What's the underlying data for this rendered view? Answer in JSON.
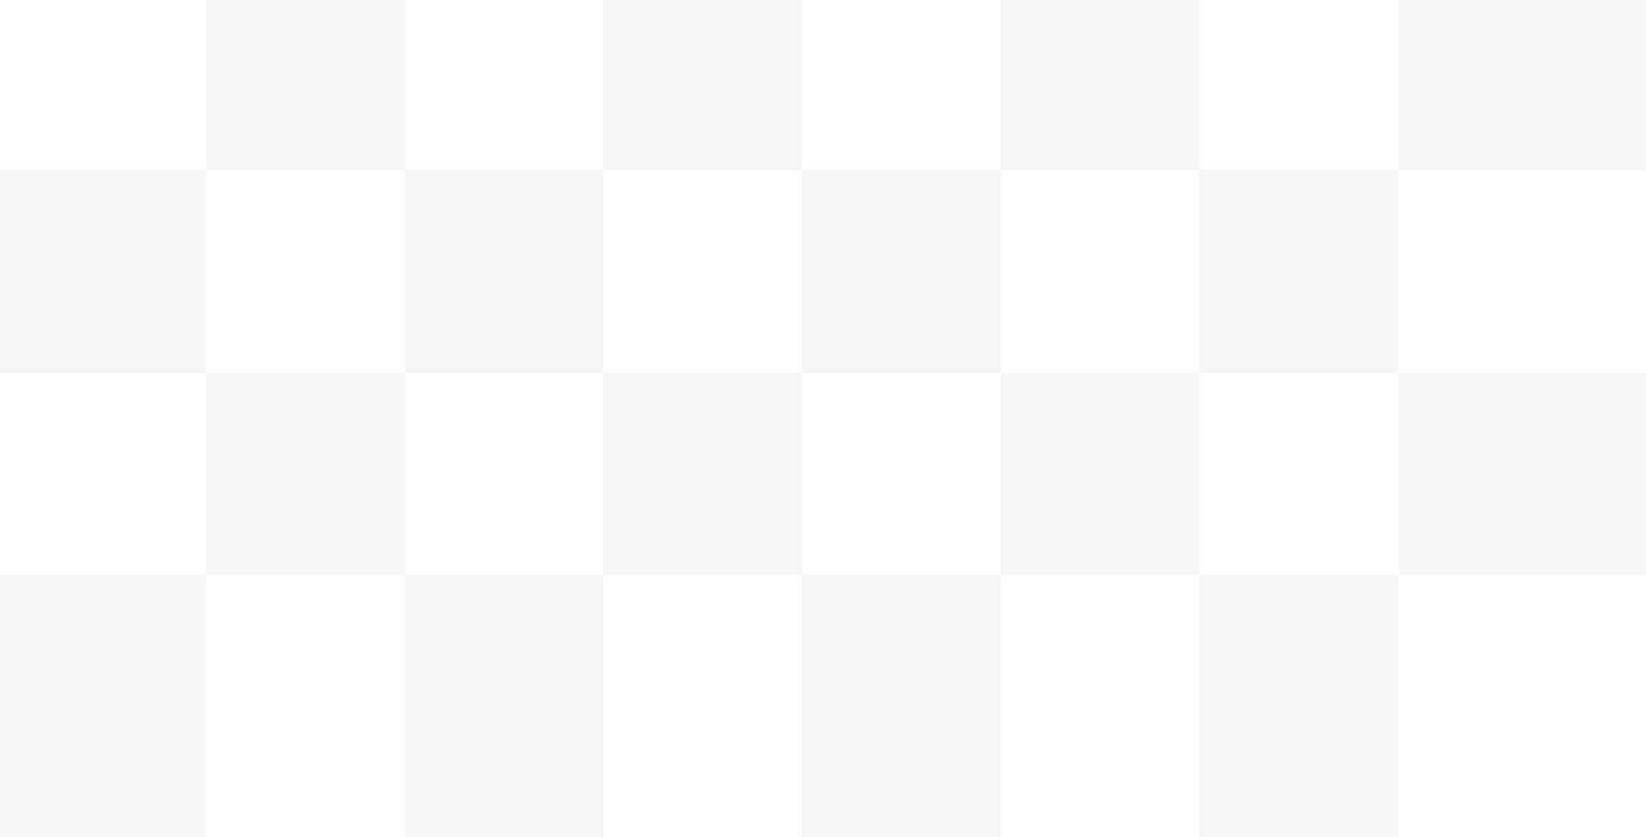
{
  "pattern": {
    "type": "checkerboard",
    "columns": 8,
    "rows": 4,
    "colors": {
      "light": "#ffffff",
      "dark": "#f6f6f6"
    },
    "first_cell": "light"
  }
}
